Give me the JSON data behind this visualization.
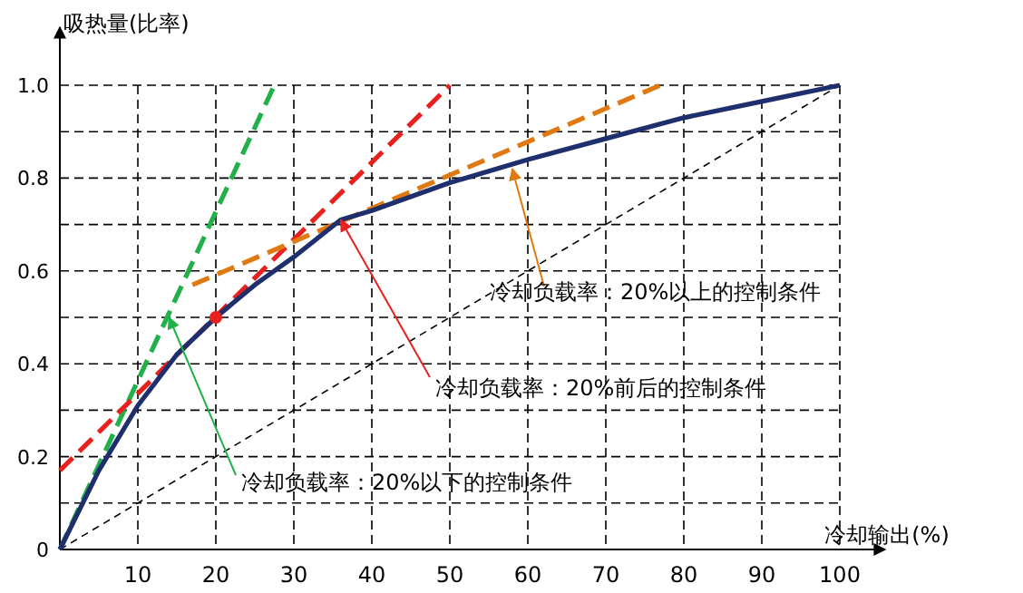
{
  "chart_data": {
    "type": "line",
    "xlabel": "冷却输出(%)",
    "ylabel": "吸热量(比率)",
    "xlim": [
      0,
      100
    ],
    "ylim": [
      0,
      1.0
    ],
    "xticks": [
      10,
      20,
      30,
      40,
      50,
      60,
      70,
      80,
      90,
      100
    ],
    "yticks": [
      0,
      {
        "value": 0.1,
        "label": null
      },
      0.2,
      {
        "value": 0.3,
        "label": null
      },
      0.4,
      {
        "value": 0.5,
        "label": null
      },
      0.6,
      {
        "value": 0.7,
        "label": null
      },
      0.8,
      {
        "value": 0.9,
        "label": null
      },
      {
        "value": 1.0,
        "label": "1.0"
      }
    ],
    "grid": true,
    "series": [
      {
        "line_style": "dashed",
        "color": "#000000",
        "x": [
          0,
          100
        ],
        "values": [
          0,
          1.0
        ]
      },
      {
        "line_style": "dashed",
        "color": "#22b04b",
        "x": [
          0,
          27.5
        ],
        "values": [
          0,
          1.0
        ]
      },
      {
        "line_style": "dashed",
        "color": "#e8201e",
        "x": [
          0,
          50
        ],
        "values": [
          0.17,
          1.0
        ]
      },
      {
        "line_style": "dashed",
        "color": "#e07a10",
        "x": [
          17,
          77
        ],
        "values": [
          0.57,
          1.0
        ]
      },
      {
        "line_style": "solid",
        "color": "#1f2f6e",
        "x": [
          0,
          5,
          10,
          15,
          20,
          25,
          30,
          36,
          40,
          50,
          60,
          70,
          80,
          90,
          100
        ],
        "values": [
          0,
          0.17,
          0.31,
          0.42,
          0.5,
          0.57,
          0.63,
          0.71,
          0.73,
          0.79,
          0.84,
          0.885,
          0.93,
          0.965,
          1.0
        ]
      },
      {
        "type": "scatter",
        "marker": "circle",
        "color": "#e8201e",
        "x": [
          20
        ],
        "values": [
          0.5
        ]
      }
    ],
    "annotations": [
      {
        "text": "冷却负载率：20%以上的控制条件",
        "x": 58,
        "y": 0.82
      },
      {
        "text": "冷却负载率：20%前后的控制条件",
        "x": 36,
        "y": 0.71
      },
      {
        "text": "冷却负载率：20%以下的控制条件",
        "x": 14,
        "y": 0.5
      }
    ]
  }
}
